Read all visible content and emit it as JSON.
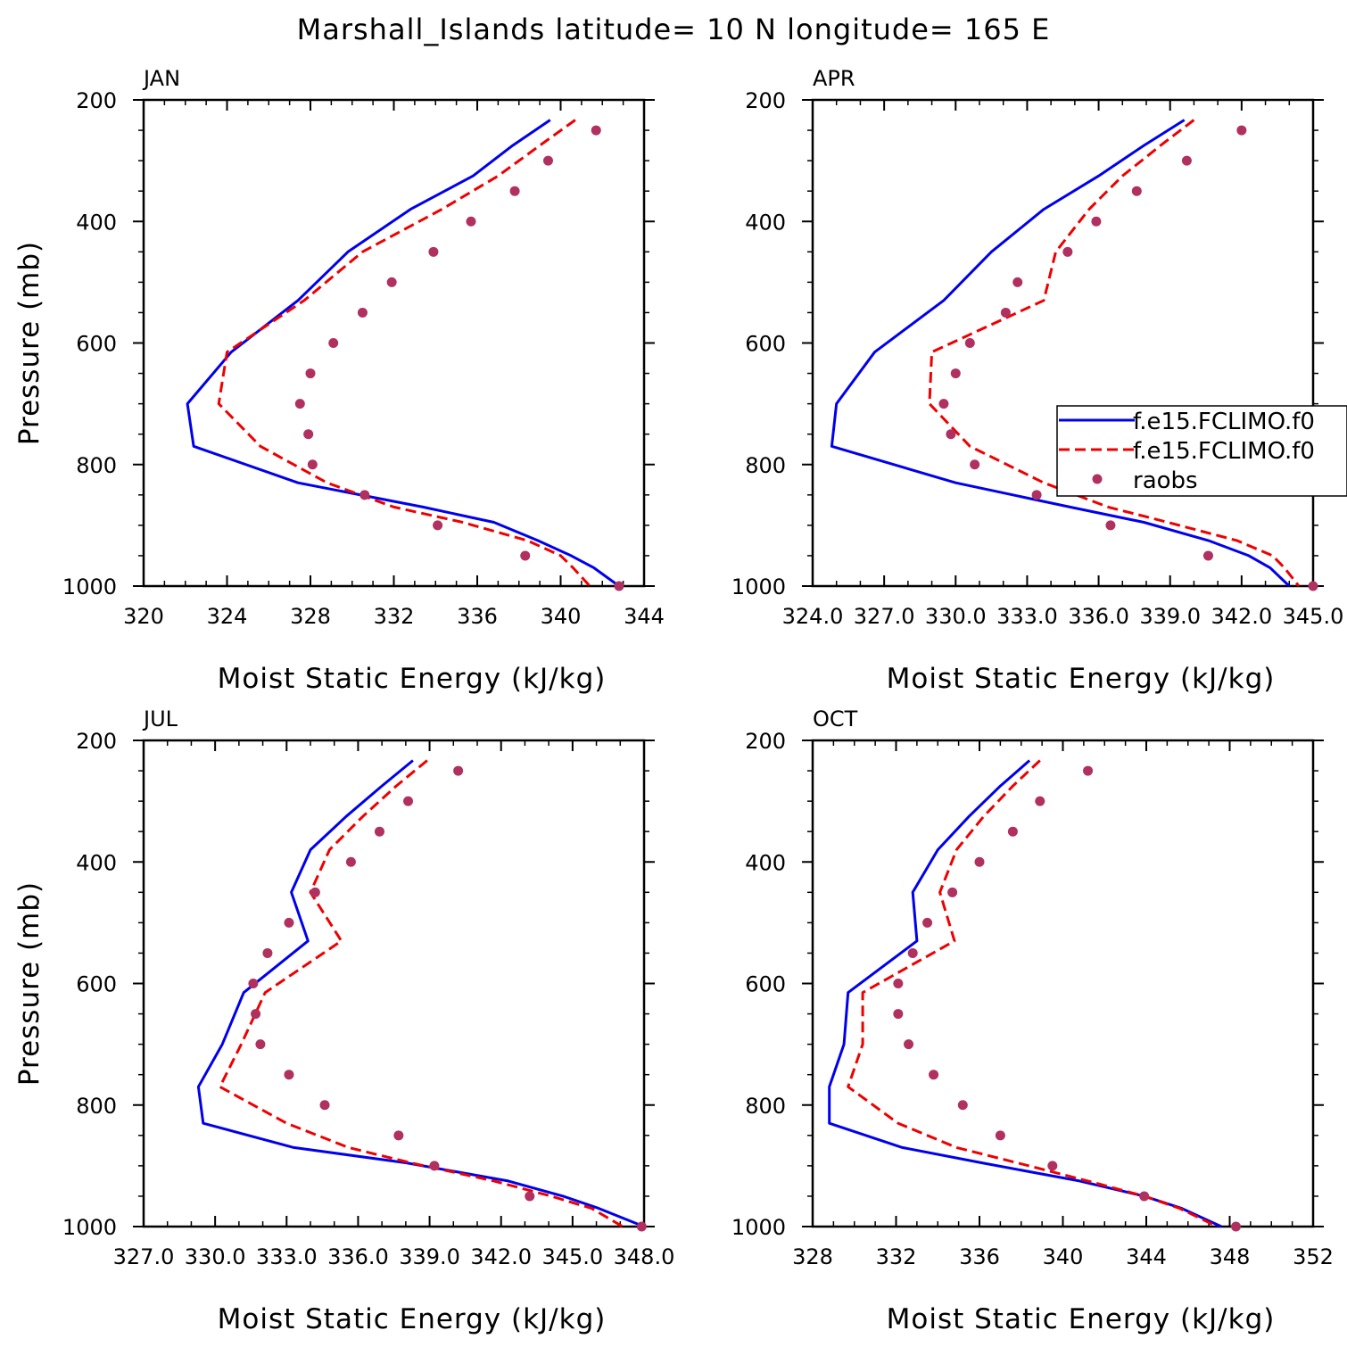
{
  "figure": {
    "title": "Marshall_Islands  latitude= 10 N longitude= 165 E"
  },
  "legend": {
    "entries": [
      {
        "label": "f.e15.FCLIMO.f0",
        "color": "#0000ee",
        "style": "solid"
      },
      {
        "label": "f.e15.FCLIMO.f0",
        "color": "#ee0000",
        "style": "dashed"
      },
      {
        "label": "raobs",
        "color": "#b03060",
        "style": "marker"
      }
    ]
  },
  "chart_data": [
    {
      "type": "line",
      "panel": "JAN",
      "xlabel": "Moist Static Energy (kJ/kg)",
      "ylabel": "Pressure (mb)",
      "xlim": [
        320,
        344
      ],
      "ylim": [
        1000,
        200
      ],
      "xticks": [
        "320",
        "324",
        "328",
        "332",
        "336",
        "340",
        "344"
      ],
      "yticks": [
        "200",
        "400",
        "600",
        "800",
        "1000"
      ],
      "pressure": [
        233,
        275,
        325,
        380,
        450,
        530,
        615,
        700,
        770,
        830,
        870,
        895,
        925,
        950,
        970,
        1000
      ],
      "series": [
        {
          "name": "f.e15.FCLIMO.f0",
          "color": "#0000ee",
          "style": "solid",
          "x": [
            339.5,
            337.7,
            335.8,
            332.8,
            329.8,
            327.4,
            324.2,
            322.1,
            322.4,
            327.4,
            333.4,
            336.8,
            338.9,
            340.5,
            341.6,
            342.8
          ]
        },
        {
          "name": "f.e15.FCLIMO.f0",
          "color": "#ee0000",
          "style": "dashed",
          "x": [
            340.7,
            339.0,
            337.0,
            334.3,
            330.5,
            327.7,
            324.0,
            323.6,
            325.6,
            328.8,
            332.0,
            335.3,
            338.4,
            340.0,
            340.6,
            341.4
          ]
        },
        {
          "name": "raobs",
          "color": "#b03060",
          "style": "marker",
          "pressure": [
            250,
            300,
            350,
            400,
            450,
            500,
            550,
            600,
            650,
            700,
            750,
            800,
            850,
            900,
            950,
            1000
          ],
          "x": [
            341.7,
            339.4,
            337.8,
            335.7,
            333.9,
            331.9,
            330.5,
            329.1,
            328.0,
            327.5,
            327.9,
            328.1,
            330.6,
            334.1,
            338.3,
            342.8
          ]
        }
      ]
    },
    {
      "type": "line",
      "panel": "APR",
      "xlabel": "Moist Static Energy (kJ/kg)",
      "ylabel": "",
      "xlim": [
        324.0,
        345.0
      ],
      "ylim": [
        1000,
        200
      ],
      "xticks": [
        "324.0",
        "327.0",
        "330.0",
        "333.0",
        "336.0",
        "339.0",
        "342.0",
        "345.0"
      ],
      "yticks": [
        "200",
        "400",
        "600",
        "800",
        "1000"
      ],
      "pressure": [
        233,
        275,
        325,
        380,
        450,
        530,
        615,
        700,
        770,
        830,
        870,
        895,
        925,
        950,
        970,
        1000
      ],
      "series": [
        {
          "name": "f.e15.FCLIMO.f0",
          "color": "#0000ee",
          "style": "solid",
          "x": [
            339.6,
            337.9,
            336.0,
            333.7,
            331.5,
            329.5,
            326.6,
            325.0,
            324.8,
            330.0,
            334.8,
            337.9,
            340.6,
            342.3,
            343.2,
            344.0
          ]
        },
        {
          "name": "f.e15.FCLIMO.f0",
          "color": "#ee0000",
          "style": "dashed",
          "x": [
            340.0,
            338.6,
            337.0,
            335.6,
            334.2,
            333.7,
            329.0,
            328.9,
            330.6,
            333.7,
            336.4,
            338.9,
            341.8,
            343.3,
            343.8,
            344.4
          ]
        },
        {
          "name": "raobs",
          "color": "#b03060",
          "style": "marker",
          "pressure": [
            250,
            300,
            350,
            400,
            450,
            500,
            550,
            600,
            650,
            700,
            750,
            800,
            850,
            900,
            950,
            1000
          ],
          "x": [
            342.0,
            339.7,
            337.6,
            335.9,
            334.7,
            332.6,
            332.1,
            330.6,
            330.0,
            329.5,
            329.8,
            330.8,
            333.4,
            336.5,
            340.6,
            345.0
          ]
        }
      ]
    },
    {
      "type": "line",
      "panel": "JUL",
      "xlabel": "Moist Static Energy (kJ/kg)",
      "ylabel": "Pressure (mb)",
      "xlim": [
        327.0,
        348.0
      ],
      "ylim": [
        1000,
        200
      ],
      "xticks": [
        "327.0",
        "330.0",
        "333.0",
        "336.0",
        "339.0",
        "342.0",
        "345.0",
        "348.0"
      ],
      "yticks": [
        "200",
        "400",
        "600",
        "800",
        "1000"
      ],
      "pressure": [
        233,
        275,
        325,
        380,
        450,
        530,
        615,
        700,
        770,
        830,
        870,
        895,
        925,
        950,
        970,
        1000
      ],
      "series": [
        {
          "name": "f.e15.FCLIMO.f0",
          "color": "#0000ee",
          "style": "solid",
          "x": [
            338.3,
            337.0,
            335.5,
            334.0,
            333.2,
            333.9,
            331.2,
            330.3,
            329.3,
            329.5,
            333.3,
            338.0,
            342.3,
            344.6,
            346.1,
            348.0
          ]
        },
        {
          "name": "f.e15.FCLIMO.f0",
          "color": "#ee0000",
          "style": "dashed",
          "x": [
            338.9,
            337.6,
            336.2,
            334.8,
            334.0,
            335.3,
            332.1,
            331.1,
            330.2,
            333.0,
            335.6,
            338.2,
            341.7,
            344.1,
            345.8,
            347.1
          ]
        },
        {
          "name": "raobs",
          "color": "#b03060",
          "style": "marker",
          "pressure": [
            250,
            300,
            350,
            400,
            450,
            500,
            550,
            600,
            650,
            700,
            750,
            800,
            850,
            900,
            950,
            1000
          ],
          "x": [
            340.2,
            338.1,
            336.9,
            335.7,
            334.2,
            333.1,
            332.2,
            331.6,
            331.7,
            331.9,
            333.1,
            334.6,
            337.7,
            339.2,
            343.2,
            347.9
          ]
        }
      ]
    },
    {
      "type": "line",
      "panel": "OCT",
      "xlabel": "Moist Static Energy (kJ/kg)",
      "ylabel": "",
      "xlim": [
        328,
        352
      ],
      "ylim": [
        1000,
        200
      ],
      "xticks": [
        "328",
        "332",
        "336",
        "340",
        "344",
        "348",
        "352"
      ],
      "yticks": [
        "200",
        "400",
        "600",
        "800",
        "1000"
      ],
      "pressure": [
        233,
        275,
        325,
        380,
        450,
        530,
        615,
        700,
        770,
        830,
        870,
        895,
        925,
        950,
        970,
        1000
      ],
      "series": [
        {
          "name": "f.e15.FCLIMO.f0",
          "color": "#0000ee",
          "style": "solid",
          "x": [
            338.4,
            337.0,
            335.5,
            334.0,
            332.8,
            333.0,
            329.7,
            329.5,
            328.8,
            328.8,
            332.3,
            336.1,
            340.8,
            343.9,
            345.7,
            347.6
          ]
        },
        {
          "name": "f.e15.FCLIMO.f0",
          "color": "#ee0000",
          "style": "dashed",
          "x": [
            338.9,
            337.6,
            336.2,
            334.9,
            334.1,
            334.8,
            330.4,
            330.4,
            329.7,
            332.1,
            334.9,
            337.8,
            341.2,
            343.9,
            345.6,
            347.4
          ]
        },
        {
          "name": "raobs",
          "color": "#b03060",
          "style": "marker",
          "pressure": [
            250,
            300,
            350,
            400,
            450,
            500,
            550,
            600,
            650,
            700,
            750,
            800,
            850,
            900,
            950,
            1000
          ],
          "x": [
            341.2,
            338.9,
            337.6,
            336.0,
            334.7,
            333.5,
            332.8,
            332.1,
            332.1,
            332.6,
            333.8,
            335.2,
            337.0,
            339.5,
            343.9,
            348.3
          ]
        }
      ]
    }
  ]
}
